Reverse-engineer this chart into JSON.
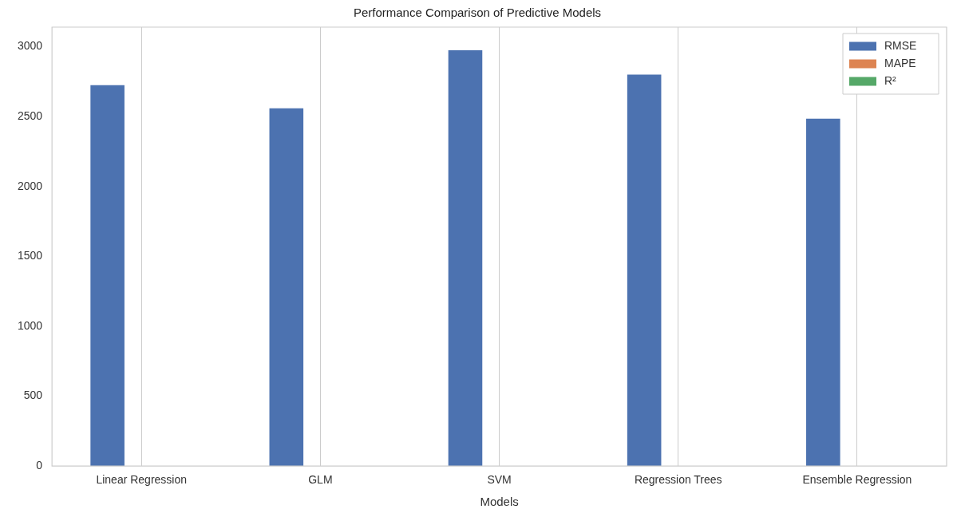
{
  "chart_data": {
    "type": "bar",
    "title": "Performance Comparison of Predictive Models",
    "xlabel": "Models",
    "categories": [
      "Linear Regression",
      "GLM",
      "SVM",
      "Regression Trees",
      "Ensemble Regression"
    ],
    "series": [
      {
        "name": "RMSE",
        "color": "#4c72b0",
        "values": [
          2725,
          2560,
          2975,
          2800,
          2485
        ]
      },
      {
        "name": "MAPE",
        "color": "#dd8452",
        "values": [
          0,
          0,
          0,
          0,
          0
        ]
      },
      {
        "name": "R²",
        "color": "#55a868",
        "values": [
          0,
          0,
          0,
          0,
          0
        ]
      }
    ],
    "ylim": [
      0,
      3140
    ],
    "yticks": [
      0,
      500,
      1000,
      1500,
      2000,
      2500,
      3000
    ],
    "grid": "x",
    "legend": "top right"
  }
}
